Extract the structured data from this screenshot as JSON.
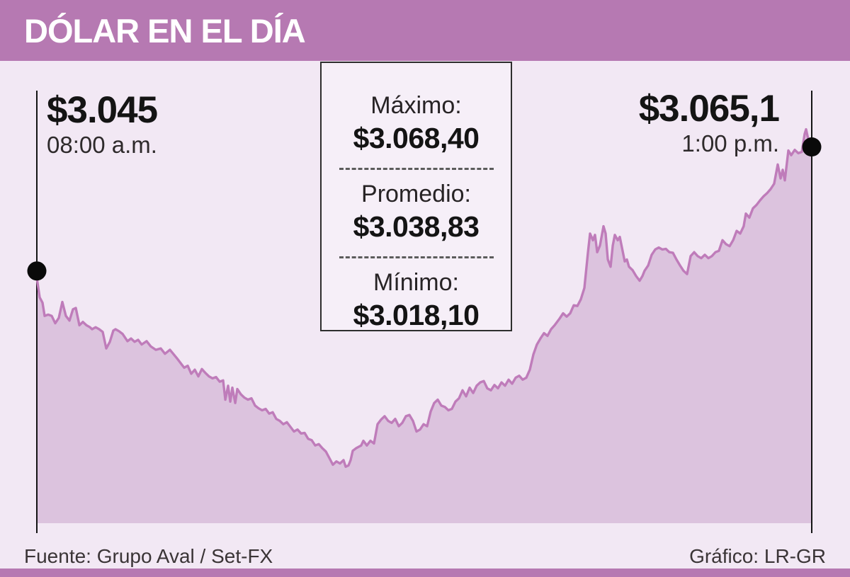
{
  "header": {
    "title": "DÓLAR EN EL DÍA"
  },
  "chart_annotations": {
    "open": {
      "value": "$3.045",
      "time": "08:00 a.m."
    },
    "close": {
      "value": "$3.065,1",
      "time": "1:00 p.m."
    }
  },
  "stats_box": {
    "max_label": "Máximo:",
    "max_value": "$3.068,40",
    "avg_label": "Promedio:",
    "avg_value": "$3.038,83",
    "min_label": "Mínimo:",
    "min_value": "$3.018,10"
  },
  "footer": {
    "source": "Fuente: Grupo Aval / Set-FX",
    "credit": "Gráfico: LR-GR"
  },
  "colors": {
    "header_bar": "#b679b2",
    "background": "#f2e8f4",
    "area_fill": "#dcc3de",
    "line": "#bf7cba",
    "axis": "#141414",
    "dot": "#0a0a0a"
  },
  "chart_data": {
    "type": "area",
    "title": "DÓLAR EN EL DÍA",
    "x_start_label": "08:00 a.m.",
    "x_end_label": "1:00 p.m.",
    "open": 3045.0,
    "close": 3065.1,
    "max": 3068.4,
    "avg": 3038.83,
    "min": 3018.1,
    "ylim": [
      3009.1,
      3077.2
    ],
    "grid": false,
    "legend": false,
    "points": [
      [
        0.0,
        3046.0
      ],
      [
        0.0037,
        3043.1
      ],
      [
        0.0073,
        3042.3
      ],
      [
        0.0101,
        3040.3
      ],
      [
        0.0146,
        3040.5
      ],
      [
        0.0192,
        3040.3
      ],
      [
        0.0238,
        3039.2
      ],
      [
        0.0283,
        3040.0
      ],
      [
        0.0329,
        3042.4
      ],
      [
        0.0375,
        3040.3
      ],
      [
        0.0421,
        3039.6
      ],
      [
        0.0466,
        3041.3
      ],
      [
        0.0503,
        3041.5
      ],
      [
        0.0549,
        3038.9
      ],
      [
        0.0594,
        3039.4
      ],
      [
        0.064,
        3038.9
      ],
      [
        0.0686,
        3038.6
      ],
      [
        0.0713,
        3038.3
      ],
      [
        0.0759,
        3038.6
      ],
      [
        0.0804,
        3038.3
      ],
      [
        0.085,
        3037.9
      ],
      [
        0.0896,
        3035.4
      ],
      [
        0.0942,
        3036.4
      ],
      [
        0.0987,
        3038.1
      ],
      [
        0.1015,
        3038.3
      ],
      [
        0.106,
        3038.0
      ],
      [
        0.1106,
        3037.6
      ],
      [
        0.117,
        3036.5
      ],
      [
        0.1216,
        3036.9
      ],
      [
        0.1261,
        3036.4
      ],
      [
        0.1307,
        3036.7
      ],
      [
        0.1353,
        3036.0
      ],
      [
        0.1417,
        3036.5
      ],
      [
        0.1472,
        3035.7
      ],
      [
        0.1536,
        3035.2
      ],
      [
        0.16,
        3035.4
      ],
      [
        0.1654,
        3034.6
      ],
      [
        0.1718,
        3035.2
      ],
      [
        0.181,
        3033.9
      ],
      [
        0.1901,
        3032.5
      ],
      [
        0.1947,
        3032.8
      ],
      [
        0.1993,
        3031.6
      ],
      [
        0.2038,
        3032.2
      ],
      [
        0.2084,
        3031.2
      ],
      [
        0.213,
        3032.3
      ],
      [
        0.2176,
        3031.7
      ],
      [
        0.2221,
        3031.2
      ],
      [
        0.2267,
        3030.9
      ],
      [
        0.2313,
        3031.1
      ],
      [
        0.2359,
        3030.4
      ],
      [
        0.2404,
        3030.6
      ],
      [
        0.2432,
        3027.7
      ],
      [
        0.2468,
        3029.8
      ],
      [
        0.2496,
        3027.4
      ],
      [
        0.2523,
        3029.5
      ],
      [
        0.256,
        3027.2
      ],
      [
        0.2587,
        3029.3
      ],
      [
        0.2633,
        3028.5
      ],
      [
        0.2679,
        3028.0
      ],
      [
        0.2724,
        3027.7
      ],
      [
        0.277,
        3027.9
      ],
      [
        0.2816,
        3026.8
      ],
      [
        0.2861,
        3026.4
      ],
      [
        0.2907,
        3026.1
      ],
      [
        0.2953,
        3026.3
      ],
      [
        0.2998,
        3025.6
      ],
      [
        0.3044,
        3025.8
      ],
      [
        0.309,
        3024.8
      ],
      [
        0.3135,
        3024.5
      ],
      [
        0.3181,
        3024.0
      ],
      [
        0.3227,
        3024.3
      ],
      [
        0.3272,
        3023.6
      ],
      [
        0.3318,
        3022.9
      ],
      [
        0.3364,
        3023.2
      ],
      [
        0.341,
        3022.6
      ],
      [
        0.3455,
        3022.7
      ],
      [
        0.3501,
        3021.8
      ],
      [
        0.3547,
        3021.6
      ],
      [
        0.3592,
        3020.8
      ],
      [
        0.3638,
        3021.0
      ],
      [
        0.3684,
        3020.4
      ],
      [
        0.3729,
        3019.9
      ],
      [
        0.3775,
        3018.9
      ],
      [
        0.3821,
        3017.9
      ],
      [
        0.3866,
        3018.4
      ],
      [
        0.3912,
        3018.1
      ],
      [
        0.3958,
        3018.6
      ],
      [
        0.3985,
        3017.6
      ],
      [
        0.4022,
        3017.8
      ],
      [
        0.4049,
        3018.6
      ],
      [
        0.4077,
        3020.0
      ],
      [
        0.4122,
        3020.4
      ],
      [
        0.4186,
        3020.8
      ],
      [
        0.4214,
        3021.5
      ],
      [
        0.4259,
        3020.8
      ],
      [
        0.4305,
        3021.5
      ],
      [
        0.4351,
        3021.1
      ],
      [
        0.4397,
        3024.0
      ],
      [
        0.4442,
        3024.7
      ],
      [
        0.4488,
        3025.2
      ],
      [
        0.4534,
        3024.5
      ],
      [
        0.4579,
        3024.2
      ],
      [
        0.4625,
        3024.8
      ],
      [
        0.4671,
        3023.7
      ],
      [
        0.4716,
        3024.2
      ],
      [
        0.4762,
        3025.2
      ],
      [
        0.4808,
        3025.4
      ],
      [
        0.4854,
        3024.5
      ],
      [
        0.4899,
        3022.9
      ],
      [
        0.4945,
        3023.2
      ],
      [
        0.4991,
        3024.0
      ],
      [
        0.5037,
        3023.7
      ],
      [
        0.5082,
        3025.9
      ],
      [
        0.5128,
        3027.2
      ],
      [
        0.5174,
        3027.7
      ],
      [
        0.5219,
        3026.8
      ],
      [
        0.5265,
        3026.6
      ],
      [
        0.5311,
        3026.1
      ],
      [
        0.5356,
        3026.3
      ],
      [
        0.5402,
        3027.4
      ],
      [
        0.5448,
        3027.9
      ],
      [
        0.5494,
        3029.1
      ],
      [
        0.5539,
        3028.2
      ],
      [
        0.5585,
        3029.5
      ],
      [
        0.5631,
        3028.7
      ],
      [
        0.5676,
        3029.8
      ],
      [
        0.5722,
        3030.3
      ],
      [
        0.5768,
        3030.5
      ],
      [
        0.5813,
        3029.4
      ],
      [
        0.5859,
        3029.1
      ],
      [
        0.5905,
        3029.9
      ],
      [
        0.5951,
        3029.4
      ],
      [
        0.5996,
        3030.3
      ],
      [
        0.6042,
        3029.8
      ],
      [
        0.6088,
        3030.7
      ],
      [
        0.6133,
        3030.1
      ],
      [
        0.6179,
        3031.0
      ],
      [
        0.6225,
        3031.3
      ],
      [
        0.627,
        3030.7
      ],
      [
        0.6316,
        3031.0
      ],
      [
        0.6362,
        3032.2
      ],
      [
        0.6408,
        3034.5
      ],
      [
        0.6453,
        3036.0
      ],
      [
        0.6499,
        3036.9
      ],
      [
        0.6545,
        3037.7
      ],
      [
        0.659,
        3037.3
      ],
      [
        0.6636,
        3038.3
      ],
      [
        0.6682,
        3038.9
      ],
      [
        0.6746,
        3039.9
      ],
      [
        0.6792,
        3040.7
      ],
      [
        0.6837,
        3040.2
      ],
      [
        0.6883,
        3040.7
      ],
      [
        0.6929,
        3041.9
      ],
      [
        0.6975,
        3041.8
      ],
      [
        0.702,
        3042.8
      ],
      [
        0.7066,
        3044.5
      ],
      [
        0.7112,
        3049.9
      ],
      [
        0.7139,
        3052.7
      ],
      [
        0.7176,
        3051.7
      ],
      [
        0.7203,
        3052.5
      ],
      [
        0.7231,
        3049.9
      ],
      [
        0.7267,
        3050.9
      ],
      [
        0.7313,
        3053.8
      ],
      [
        0.734,
        3052.7
      ],
      [
        0.7368,
        3048.8
      ],
      [
        0.7404,
        3047.7
      ],
      [
        0.7432,
        3050.9
      ],
      [
        0.7459,
        3052.5
      ],
      [
        0.7496,
        3051.7
      ],
      [
        0.7523,
        3052.2
      ],
      [
        0.755,
        3050.6
      ],
      [
        0.7587,
        3048.5
      ],
      [
        0.7614,
        3048.8
      ],
      [
        0.7642,
        3047.7
      ],
      [
        0.7687,
        3047.2
      ],
      [
        0.7733,
        3046.3
      ],
      [
        0.7779,
        3045.6
      ],
      [
        0.7815,
        3046.3
      ],
      [
        0.7843,
        3047.1
      ],
      [
        0.7889,
        3047.9
      ],
      [
        0.7934,
        3049.5
      ],
      [
        0.798,
        3050.3
      ],
      [
        0.8026,
        3050.6
      ],
      [
        0.8071,
        3050.3
      ],
      [
        0.8117,
        3050.4
      ],
      [
        0.8163,
        3049.9
      ],
      [
        0.8208,
        3049.8
      ],
      [
        0.8254,
        3048.8
      ],
      [
        0.83,
        3047.9
      ],
      [
        0.8345,
        3047.1
      ],
      [
        0.8391,
        3046.6
      ],
      [
        0.8437,
        3049.3
      ],
      [
        0.8483,
        3049.9
      ],
      [
        0.8528,
        3049.3
      ],
      [
        0.8574,
        3049.0
      ],
      [
        0.862,
        3049.5
      ],
      [
        0.8665,
        3049.0
      ],
      [
        0.8711,
        3049.3
      ],
      [
        0.8757,
        3049.9
      ],
      [
        0.8802,
        3050.1
      ],
      [
        0.8848,
        3051.7
      ],
      [
        0.8894,
        3051.1
      ],
      [
        0.894,
        3050.8
      ],
      [
        0.8985,
        3051.7
      ],
      [
        0.9031,
        3053.1
      ],
      [
        0.9077,
        3052.7
      ],
      [
        0.9122,
        3053.8
      ],
      [
        0.915,
        3055.7
      ],
      [
        0.9195,
        3055.1
      ],
      [
        0.9241,
        3056.5
      ],
      [
        0.9287,
        3057.0
      ],
      [
        0.9333,
        3057.7
      ],
      [
        0.9378,
        3058.3
      ],
      [
        0.9424,
        3058.8
      ],
      [
        0.947,
        3059.4
      ],
      [
        0.9515,
        3060.2
      ],
      [
        0.9561,
        3063.1
      ],
      [
        0.9598,
        3061.0
      ],
      [
        0.9625,
        3062.3
      ],
      [
        0.9653,
        3060.7
      ],
      [
        0.9698,
        3065.2
      ],
      [
        0.9735,
        3064.5
      ],
      [
        0.9781,
        3065.3
      ],
      [
        0.9826,
        3064.8
      ],
      [
        0.9872,
        3065.0
      ],
      [
        0.9909,
        3067.7
      ],
      [
        0.9927,
        3068.4
      ],
      [
        0.9954,
        3066.9
      ],
      [
        1.0,
        3065.1
      ]
    ]
  }
}
